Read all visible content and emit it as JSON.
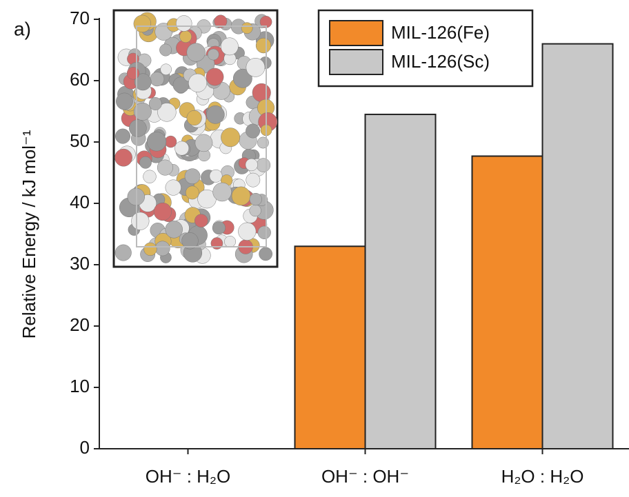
{
  "chart_data": {
    "type": "bar",
    "panel_label": "a)",
    "y_label": "Relative Energy / kJ mol⁻¹",
    "categories": [
      "OH⁻ : H₂O",
      "OH⁻ : OH⁻",
      "H₂O : H₂O"
    ],
    "series": [
      {
        "name": "MIL-126(Fe)",
        "color": "#f28a2a",
        "values": [
          0,
          33,
          47.7
        ]
      },
      {
        "name": "MIL-126(Sc)",
        "color": "#c8c8c8",
        "values": [
          0,
          54.5,
          66
        ]
      }
    ],
    "ylim": [
      0,
      70
    ],
    "yticks": [
      0,
      10,
      20,
      30,
      40,
      50,
      60,
      70
    ],
    "legend": "top-right"
  }
}
